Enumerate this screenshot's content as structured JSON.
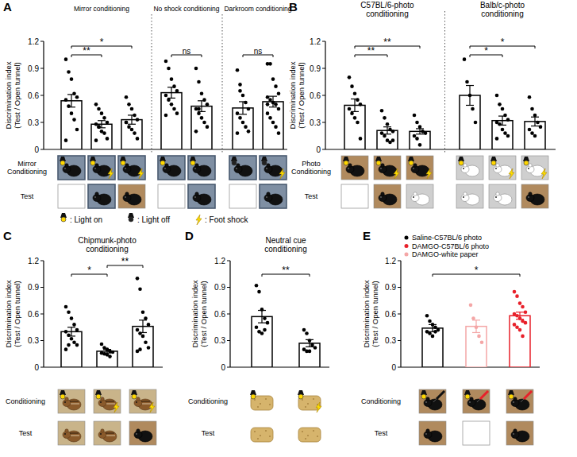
{
  "chart_data": [
    {
      "type": "bar",
      "title": "A",
      "y_label": [
        "Discrimination index",
        "(Test / Open tunnel)"
      ],
      "categories": [
        null,
        null,
        null,
        null,
        null,
        null,
        null
      ],
      "groups": [
        "Mirror conditioning",
        "Mirror conditioning",
        "Mirror conditioning",
        "No shock conditioning",
        "No shock conditioning",
        "Darkroom conditioning",
        "Darkroom conditioning"
      ],
      "values": [
        0.54,
        0.28,
        0.33,
        0.63,
        0.48,
        0.46,
        0.53
      ],
      "errors": [
        0.07,
        0.04,
        0.05,
        0.06,
        0.06,
        0.07,
        0.06
      ],
      "points": [
        [
          1.0,
          0.86,
          0.78,
          0.62,
          0.58,
          0.55,
          0.48,
          0.4,
          0.33,
          0.22,
          0.1
        ],
        [
          0.5,
          0.45,
          0.4,
          0.35,
          0.3,
          0.28,
          0.25,
          0.2,
          0.18,
          0.12,
          0.1,
          0.25
        ],
        [
          0.58,
          0.5,
          0.45,
          0.38,
          0.33,
          0.3,
          0.25,
          0.22,
          0.18,
          0.12,
          0.3
        ],
        [
          0.98,
          0.9,
          0.78,
          0.7,
          0.65,
          0.6,
          0.55,
          0.5,
          0.45,
          0.4,
          0.38
        ],
        [
          0.9,
          0.75,
          0.62,
          0.55,
          0.5,
          0.45,
          0.4,
          0.35,
          0.3,
          0.25,
          0.2,
          0.45
        ],
        [
          0.88,
          0.72,
          0.6,
          0.52,
          0.45,
          0.4,
          0.35,
          0.3,
          0.25,
          0.2,
          0.18,
          0.65
        ],
        [
          0.95,
          0.95,
          0.78,
          0.7,
          0.62,
          0.58,
          0.55,
          0.52,
          0.5,
          0.45,
          0.4,
          0.35,
          0.3,
          0.25,
          0.18,
          0.5
        ]
      ],
      "colors": [
        "#000000",
        "#000000",
        "#000000",
        "#000000",
        "#000000",
        "#000000",
        "#000000"
      ],
      "ylim": [
        0,
        1.2
      ],
      "yticks": [
        0,
        0.3,
        0.6,
        0.9,
        1.2
      ],
      "row_labels": [
        "Mirror\nConditioning",
        "Test"
      ],
      "annotations": [
        {
          "from": 0,
          "to": 1,
          "text": "**"
        },
        {
          "from": 0,
          "to": 2,
          "text": "*"
        },
        {
          "from": 3,
          "to": 4,
          "text": "ns"
        },
        {
          "from": 5,
          "to": 6,
          "text": "ns"
        }
      ],
      "icon_legend": [
        ": Light on",
        ": Light off",
        ": Foot shock"
      ]
    },
    {
      "type": "bar",
      "title": "B",
      "y_label": [
        "Discrimination index",
        "(Test / Open tunnel)"
      ],
      "categories": [
        null,
        null,
        null,
        null,
        null,
        null
      ],
      "groups": [
        "C57BL/6-photo\nconditioning",
        "C57BL/6-photo\nconditioning",
        "C57BL/6-photo\nconditioning",
        "Balb/c-photo\nconditioning",
        "Balb/c-photo\nconditioning",
        "Balb/c-photo\nconditioning"
      ],
      "values": [
        0.49,
        0.21,
        0.2,
        0.6,
        0.32,
        0.31
      ],
      "errors": [
        0.07,
        0.04,
        0.03,
        0.11,
        0.05,
        0.05
      ],
      "points": [
        [
          0.8,
          0.7,
          0.62,
          0.55,
          0.5,
          0.45,
          0.4,
          0.35,
          0.3,
          0.12
        ],
        [
          0.43,
          0.35,
          0.28,
          0.22,
          0.2,
          0.18,
          0.15,
          0.1,
          0.08,
          0.1
        ],
        [
          0.38,
          0.3,
          0.25,
          0.2,
          0.18,
          0.15,
          0.12,
          0.05
        ],
        [
          1.0,
          0.75,
          0.6,
          0.45,
          0.3
        ],
        [
          0.6,
          0.5,
          0.45,
          0.38,
          0.33,
          0.3,
          0.28,
          0.22,
          0.18,
          0.15,
          0.12
        ],
        [
          0.58,
          0.45,
          0.38,
          0.3,
          0.25,
          0.22,
          0.18,
          0.15
        ]
      ],
      "colors": [
        "#000000",
        "#000000",
        "#000000",
        "#000000",
        "#000000",
        "#000000"
      ],
      "ylim": [
        0,
        1.2
      ],
      "yticks": [
        0,
        0.3,
        0.6,
        0.9,
        1.2
      ],
      "row_labels": [
        "Photo\nConditioning",
        "Test"
      ],
      "annotations": [
        {
          "from": 0,
          "to": 1,
          "text": "**"
        },
        {
          "from": 0,
          "to": 2,
          "text": "**"
        },
        {
          "from": 3,
          "to": 4,
          "text": "*"
        },
        {
          "from": 3,
          "to": 5,
          "text": "*"
        }
      ]
    },
    {
      "type": "bar",
      "title": "C",
      "y_label": [
        "Discrimination index",
        "(Test / Open tunnel)"
      ],
      "categories": [
        null,
        null,
        null
      ],
      "groups": [
        "Chipmunk-photo\nconditioning",
        "Chipmunk-photo\nconditioning",
        "Chipmunk-photo\nconditioning"
      ],
      "values": [
        0.4,
        0.18,
        0.46
      ],
      "errors": [
        0.05,
        0.02,
        0.07
      ],
      "points": [
        [
          0.68,
          0.62,
          0.55,
          0.48,
          0.42,
          0.4,
          0.36,
          0.32,
          0.28,
          0.25,
          0.2,
          0.25
        ],
        [
          0.26,
          0.22,
          0.2,
          0.18,
          0.17,
          0.16,
          0.15,
          0.14,
          0.12
        ],
        [
          1.0,
          0.88,
          0.62,
          0.55,
          0.48,
          0.42,
          0.38,
          0.35,
          0.28,
          0.22,
          0.18,
          0.2
        ]
      ],
      "colors": [
        "#000000",
        "#000000",
        "#000000"
      ],
      "ylim": [
        0,
        1.2
      ],
      "yticks": [
        0,
        0.3,
        0.6,
        0.9,
        1.2
      ],
      "row_labels": [
        "Conditioning",
        "Test"
      ],
      "annotations": [
        {
          "from": 0,
          "to": 1,
          "text": "*"
        },
        {
          "from": 1,
          "to": 2,
          "text": "**"
        }
      ]
    },
    {
      "type": "bar",
      "title": "D",
      "y_label": [
        "Discrimination index",
        "(Test / Open tunnel)"
      ],
      "categories": [
        null,
        null
      ],
      "groups": [
        "Neutral cue\nconditioning",
        "Neutral cue\nconditioning"
      ],
      "values": [
        0.57,
        0.27
      ],
      "errors": [
        0.07,
        0.04
      ],
      "points": [
        [
          0.92,
          0.85,
          0.65,
          0.55,
          0.5,
          0.45,
          0.4,
          0.38,
          0.42
        ],
        [
          0.42,
          0.38,
          0.3,
          0.25,
          0.22,
          0.2,
          0.18,
          0.18
        ]
      ],
      "colors": [
        "#000000",
        "#000000"
      ],
      "ylim": [
        0,
        1.2
      ],
      "yticks": [
        0,
        0.3,
        0.6,
        0.9,
        1.2
      ],
      "row_labels": [
        "Conditioning",
        "Test"
      ],
      "annotations": [
        {
          "from": 0,
          "to": 1,
          "text": "**"
        }
      ]
    },
    {
      "type": "bar",
      "title": "E",
      "y_label": [
        "Discrimination index",
        "(Test / Open tunnel)"
      ],
      "categories": [
        null,
        null,
        null
      ],
      "values": [
        0.44,
        0.46,
        0.58
      ],
      "errors": [
        0.04,
        0.07,
        0.04
      ],
      "points": [
        [
          0.58,
          0.52,
          0.48,
          0.45,
          0.42,
          0.4,
          0.38,
          0.35,
          0.4
        ],
        [
          0.7,
          0.55,
          0.45,
          0.35,
          0.28
        ],
        [
          0.85,
          0.8,
          0.72,
          0.68,
          0.62,
          0.6,
          0.58,
          0.55,
          0.52,
          0.5,
          0.48,
          0.45,
          0.42,
          0.35
        ]
      ],
      "colors": [
        "#000000",
        "#f4a6a6",
        "#e8202a"
      ],
      "ylim": [
        0,
        1.2
      ],
      "yticks": [
        0,
        0.3,
        0.6,
        0.9,
        1.2
      ],
      "row_labels": [
        "Conditioning",
        "Test"
      ],
      "annotations": [
        {
          "from": 0,
          "to": 2,
          "text": "*"
        }
      ],
      "legend": "top-left",
      "legend_entries": [
        {
          "name": "Saline-C57BL/6 photo",
          "color": "#000000"
        },
        {
          "name": "DAMGO-C57BL/6 photo",
          "color": "#e8202a"
        },
        {
          "name": "DAMGO-white paper",
          "color": "#f4a6a6"
        }
      ]
    }
  ]
}
